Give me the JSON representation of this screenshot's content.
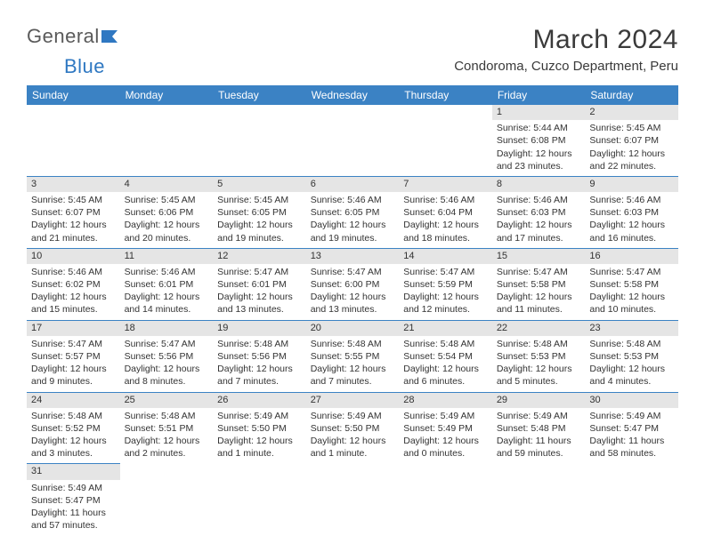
{
  "logo": {
    "word1": "General",
    "word2": "Blue"
  },
  "title": "March 2024",
  "subtitle": "Condoroma, Cuzco Department, Peru",
  "header_bg": "#3b82c4",
  "header_fg": "#ffffff",
  "cell_border": "#3b82c4",
  "daynum_bg": "#e5e5e5",
  "text_color": "#333333",
  "columns": [
    "Sunday",
    "Monday",
    "Tuesday",
    "Wednesday",
    "Thursday",
    "Friday",
    "Saturday"
  ],
  "weeks": [
    [
      null,
      null,
      null,
      null,
      null,
      {
        "n": "1",
        "sr": "5:44 AM",
        "ss": "6:08 PM",
        "dl": "12 hours and 23 minutes."
      },
      {
        "n": "2",
        "sr": "5:45 AM",
        "ss": "6:07 PM",
        "dl": "12 hours and 22 minutes."
      }
    ],
    [
      {
        "n": "3",
        "sr": "5:45 AM",
        "ss": "6:07 PM",
        "dl": "12 hours and 21 minutes."
      },
      {
        "n": "4",
        "sr": "5:45 AM",
        "ss": "6:06 PM",
        "dl": "12 hours and 20 minutes."
      },
      {
        "n": "5",
        "sr": "5:45 AM",
        "ss": "6:05 PM",
        "dl": "12 hours and 19 minutes."
      },
      {
        "n": "6",
        "sr": "5:46 AM",
        "ss": "6:05 PM",
        "dl": "12 hours and 19 minutes."
      },
      {
        "n": "7",
        "sr": "5:46 AM",
        "ss": "6:04 PM",
        "dl": "12 hours and 18 minutes."
      },
      {
        "n": "8",
        "sr": "5:46 AM",
        "ss": "6:03 PM",
        "dl": "12 hours and 17 minutes."
      },
      {
        "n": "9",
        "sr": "5:46 AM",
        "ss": "6:03 PM",
        "dl": "12 hours and 16 minutes."
      }
    ],
    [
      {
        "n": "10",
        "sr": "5:46 AM",
        "ss": "6:02 PM",
        "dl": "12 hours and 15 minutes."
      },
      {
        "n": "11",
        "sr": "5:46 AM",
        "ss": "6:01 PM",
        "dl": "12 hours and 14 minutes."
      },
      {
        "n": "12",
        "sr": "5:47 AM",
        "ss": "6:01 PM",
        "dl": "12 hours and 13 minutes."
      },
      {
        "n": "13",
        "sr": "5:47 AM",
        "ss": "6:00 PM",
        "dl": "12 hours and 13 minutes."
      },
      {
        "n": "14",
        "sr": "5:47 AM",
        "ss": "5:59 PM",
        "dl": "12 hours and 12 minutes."
      },
      {
        "n": "15",
        "sr": "5:47 AM",
        "ss": "5:58 PM",
        "dl": "12 hours and 11 minutes."
      },
      {
        "n": "16",
        "sr": "5:47 AM",
        "ss": "5:58 PM",
        "dl": "12 hours and 10 minutes."
      }
    ],
    [
      {
        "n": "17",
        "sr": "5:47 AM",
        "ss": "5:57 PM",
        "dl": "12 hours and 9 minutes."
      },
      {
        "n": "18",
        "sr": "5:47 AM",
        "ss": "5:56 PM",
        "dl": "12 hours and 8 minutes."
      },
      {
        "n": "19",
        "sr": "5:48 AM",
        "ss": "5:56 PM",
        "dl": "12 hours and 7 minutes."
      },
      {
        "n": "20",
        "sr": "5:48 AM",
        "ss": "5:55 PM",
        "dl": "12 hours and 7 minutes."
      },
      {
        "n": "21",
        "sr": "5:48 AM",
        "ss": "5:54 PM",
        "dl": "12 hours and 6 minutes."
      },
      {
        "n": "22",
        "sr": "5:48 AM",
        "ss": "5:53 PM",
        "dl": "12 hours and 5 minutes."
      },
      {
        "n": "23",
        "sr": "5:48 AM",
        "ss": "5:53 PM",
        "dl": "12 hours and 4 minutes."
      }
    ],
    [
      {
        "n": "24",
        "sr": "5:48 AM",
        "ss": "5:52 PM",
        "dl": "12 hours and 3 minutes."
      },
      {
        "n": "25",
        "sr": "5:48 AM",
        "ss": "5:51 PM",
        "dl": "12 hours and 2 minutes."
      },
      {
        "n": "26",
        "sr": "5:49 AM",
        "ss": "5:50 PM",
        "dl": "12 hours and 1 minute."
      },
      {
        "n": "27",
        "sr": "5:49 AM",
        "ss": "5:50 PM",
        "dl": "12 hours and 1 minute."
      },
      {
        "n": "28",
        "sr": "5:49 AM",
        "ss": "5:49 PM",
        "dl": "12 hours and 0 minutes."
      },
      {
        "n": "29",
        "sr": "5:49 AM",
        "ss": "5:48 PM",
        "dl": "11 hours and 59 minutes."
      },
      {
        "n": "30",
        "sr": "5:49 AM",
        "ss": "5:47 PM",
        "dl": "11 hours and 58 minutes."
      }
    ],
    [
      {
        "n": "31",
        "sr": "5:49 AM",
        "ss": "5:47 PM",
        "dl": "11 hours and 57 minutes."
      },
      null,
      null,
      null,
      null,
      null,
      null
    ]
  ],
  "labels": {
    "sunrise": "Sunrise:",
    "sunset": "Sunset:",
    "daylight": "Daylight:"
  }
}
